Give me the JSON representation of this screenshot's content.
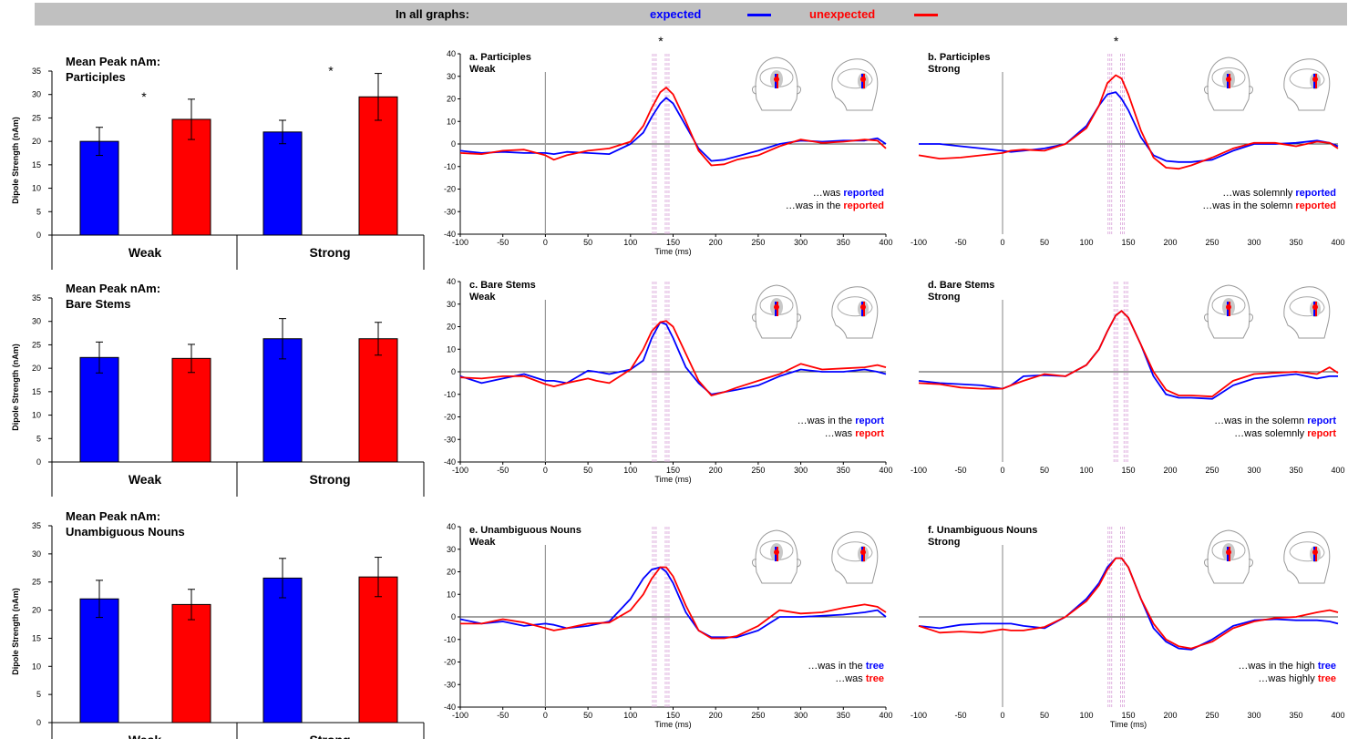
{
  "legend": {
    "label": "In all graphs:",
    "expected_label": "expected",
    "unexpected_label": "unexpected"
  },
  "colors": {
    "expected": "#0000ff",
    "unexpected": "#ff0000",
    "legend_bar": "#c0c0c0",
    "marker_lines": "#d8a0d8"
  },
  "chart_data": [
    {
      "id": "bar-participles",
      "type": "bar",
      "title": "Mean Peak nAm:\nParticiples",
      "ylabel": "Dipole Strength (nAm)",
      "ylim": [
        0,
        35
      ],
      "yticks": [
        0,
        5,
        10,
        15,
        20,
        25,
        30,
        35
      ],
      "categories": [
        "Weak",
        "Strong"
      ],
      "series": [
        {
          "name": "expected",
          "values": [
            20,
            22
          ],
          "errors": [
            3,
            2.5
          ]
        },
        {
          "name": "unexpected",
          "values": [
            24.7,
            29.5
          ],
          "errors": [
            4.3,
            5
          ]
        }
      ],
      "significance": [
        "*",
        "*"
      ]
    },
    {
      "id": "bar-bare-stems",
      "type": "bar",
      "title": "Mean Peak nAm:\nBare Stems",
      "ylabel": "Dipole Strength (nAm)",
      "ylim": [
        0,
        35
      ],
      "yticks": [
        0,
        5,
        10,
        15,
        20,
        25,
        30,
        35
      ],
      "categories": [
        "Weak",
        "Strong"
      ],
      "series": [
        {
          "name": "expected",
          "values": [
            22.3,
            26.3
          ],
          "errors": [
            3.3,
            4.3
          ]
        },
        {
          "name": "unexpected",
          "values": [
            22.1,
            26.3
          ],
          "errors": [
            3,
            3.5
          ]
        }
      ],
      "significance": [
        "",
        ""
      ]
    },
    {
      "id": "bar-unambiguous-nouns",
      "type": "bar",
      "title": "Mean Peak nAm:\nUnambiguous Nouns",
      "ylabel": "Dipole Strength (nAm)",
      "ylim": [
        0,
        35
      ],
      "yticks": [
        0,
        5,
        10,
        15,
        20,
        25,
        30,
        35
      ],
      "categories": [
        "Weak",
        "Strong"
      ],
      "series": [
        {
          "name": "expected",
          "values": [
            22,
            25.7
          ],
          "errors": [
            3.3,
            3.5
          ]
        },
        {
          "name": "unexpected",
          "values": [
            21,
            25.9
          ],
          "errors": [
            2.7,
            3.5
          ]
        }
      ],
      "significance": [
        "",
        ""
      ]
    },
    {
      "id": "line-a",
      "type": "line",
      "title": "a. Participles\n   Weak",
      "xlabel": "Time (ms)",
      "xlim": [
        -100,
        400
      ],
      "ylim": [
        -40,
        40
      ],
      "xticks": [
        -100,
        -50,
        0,
        50,
        100,
        150,
        200,
        250,
        300,
        350,
        400
      ],
      "yticks": [
        -40,
        -30,
        -20,
        -10,
        0,
        10,
        20,
        30,
        40
      ],
      "marker_star": "*",
      "x": [
        -100,
        -75,
        -50,
        -25,
        0,
        10,
        25,
        50,
        75,
        100,
        115,
        125,
        135,
        142,
        150,
        165,
        180,
        195,
        210,
        225,
        250,
        275,
        300,
        325,
        350,
        375,
        390,
        400
      ],
      "series": [
        {
          "name": "expected",
          "values": [
            -3,
            -4,
            -3.5,
            -4,
            -4,
            -4.5,
            -3.5,
            -4,
            -4.5,
            0,
            5,
            12,
            18,
            20.5,
            18,
            8,
            -2,
            -7.5,
            -7,
            -5.5,
            -3,
            0,
            1.5,
            1,
            1.5,
            1.5,
            2.5,
            0
          ]
        },
        {
          "name": "unexpected",
          "values": [
            -4,
            -4.5,
            -3,
            -2.5,
            -5,
            -7,
            -5,
            -3,
            -2,
            1,
            8,
            16,
            23,
            25,
            22,
            10,
            -3,
            -9.5,
            -9,
            -7,
            -5,
            -1,
            2,
            0.5,
            1,
            2,
            1.5,
            -2
          ]
        }
      ],
      "markers": [
        128,
        143
      ],
      "annotations": [
        {
          "prefix": "…was ",
          "word": "reported",
          "color": "expected"
        },
        {
          "prefix": "…was in the ",
          "word": "reported",
          "color": "unexpected"
        }
      ]
    },
    {
      "id": "line-b",
      "type": "line",
      "title": "b. Participles\n   Strong",
      "xlabel": "",
      "xlim": [
        -100,
        400
      ],
      "ylim": [
        -40,
        40
      ],
      "xticks": [
        -100,
        -50,
        0,
        50,
        100,
        150,
        200,
        250,
        300,
        350,
        400
      ],
      "yticks": [],
      "marker_star": "*",
      "x": [
        -100,
        -75,
        -50,
        -25,
        0,
        10,
        25,
        50,
        75,
        100,
        115,
        125,
        135,
        142,
        150,
        165,
        180,
        195,
        210,
        225,
        250,
        275,
        300,
        325,
        350,
        375,
        390,
        400
      ],
      "series": [
        {
          "name": "expected",
          "values": [
            0,
            0,
            -1,
            -2,
            -3,
            -3.5,
            -3,
            -2,
            0,
            8,
            17,
            22,
            23,
            20,
            15,
            3,
            -5,
            -7.5,
            -8,
            -8,
            -7,
            -3,
            0,
            0,
            0.5,
            1.5,
            0.5,
            -1
          ]
        },
        {
          "name": "unexpected",
          "values": [
            -5,
            -6.5,
            -6,
            -5,
            -4,
            -3,
            -2.5,
            -3,
            0,
            7,
            17,
            27,
            30.5,
            29,
            22,
            6,
            -6,
            -10.5,
            -11,
            -9.5,
            -6,
            -2,
            0.5,
            0.5,
            -1,
            1,
            0.5,
            -2
          ]
        }
      ],
      "markers": [
        128,
        143
      ],
      "annotations": [
        {
          "prefix": "…was solemnly ",
          "word": "reported",
          "color": "expected"
        },
        {
          "prefix": "…was in the solemn ",
          "word": "reported",
          "color": "unexpected"
        }
      ]
    },
    {
      "id": "line-c",
      "type": "line",
      "title": "c. Bare Stems\n   Weak",
      "xlabel": "Time (ms)",
      "xlim": [
        -100,
        400
      ],
      "ylim": [
        -40,
        40
      ],
      "xticks": [
        -100,
        -50,
        0,
        50,
        100,
        150,
        200,
        250,
        300,
        350,
        400
      ],
      "yticks": [
        -40,
        -30,
        -20,
        -10,
        0,
        10,
        20,
        30,
        40
      ],
      "marker_star": "",
      "x": [
        -100,
        -75,
        -50,
        -25,
        0,
        10,
        25,
        50,
        60,
        75,
        100,
        115,
        125,
        135,
        142,
        150,
        165,
        180,
        195,
        210,
        225,
        250,
        275,
        300,
        325,
        350,
        375,
        390,
        400
      ],
      "series": [
        {
          "name": "expected",
          "values": [
            -2,
            -5,
            -3,
            -1,
            -4,
            -4,
            -5,
            0.5,
            0,
            -1,
            1,
            5,
            15,
            22,
            21,
            15,
            2,
            -5,
            -10,
            -9,
            -8,
            -6,
            -2,
            1,
            0,
            0,
            1,
            0,
            -1
          ]
        },
        {
          "name": "unexpected",
          "values": [
            -2.5,
            -3,
            -2,
            -2,
            -5.5,
            -6.5,
            -5,
            -3,
            -4,
            -5,
            1,
            10,
            18,
            22,
            22.5,
            20,
            8,
            -4,
            -10.5,
            -9,
            -7,
            -4,
            -1,
            3.5,
            1,
            1.5,
            2,
            3,
            2
          ]
        }
      ],
      "markers": [
        128,
        143
      ],
      "annotations": [
        {
          "prefix": "…was in the ",
          "word": "report",
          "color": "expected"
        },
        {
          "prefix": "…was ",
          "word": "report",
          "color": "unexpected"
        }
      ]
    },
    {
      "id": "line-d",
      "type": "line",
      "title": "d. Bare Stems\n   Strong",
      "xlabel": "",
      "xlim": [
        -100,
        400
      ],
      "ylim": [
        -40,
        40
      ],
      "xticks": [
        -100,
        -50,
        0,
        50,
        100,
        150,
        200,
        250,
        300,
        350,
        400
      ],
      "yticks": [],
      "marker_star": "",
      "x": [
        -100,
        -75,
        -50,
        -25,
        0,
        10,
        25,
        50,
        75,
        100,
        115,
        125,
        135,
        142,
        150,
        165,
        180,
        195,
        210,
        225,
        250,
        275,
        300,
        325,
        350,
        375,
        390,
        400
      ],
      "series": [
        {
          "name": "expected",
          "values": [
            -4,
            -5,
            -5.5,
            -6,
            -7.5,
            -6,
            -2,
            -1.5,
            -2,
            3,
            10,
            18,
            25,
            27,
            24,
            12,
            -2,
            -10,
            -11.5,
            -11.5,
            -12,
            -6,
            -3,
            -2,
            -1,
            -3,
            -2,
            -2
          ]
        },
        {
          "name": "unexpected",
          "values": [
            -5,
            -5.5,
            -7,
            -7.5,
            -7.5,
            -6,
            -4,
            -1,
            -2,
            3,
            10,
            18,
            25,
            27,
            24,
            12,
            0,
            -8,
            -10.5,
            -10.5,
            -11,
            -4,
            -1,
            -0.5,
            0,
            -1,
            2,
            -0.5
          ]
        }
      ],
      "markers": [
        135,
        147
      ],
      "annotations": [
        {
          "prefix": "…was in the solemn ",
          "word": "report",
          "color": "expected"
        },
        {
          "prefix": "…was solemnly ",
          "word": "report",
          "color": "unexpected"
        }
      ]
    },
    {
      "id": "line-e",
      "type": "line",
      "title": "e. Unambiguous Nouns\n   Weak",
      "xlabel": "Time (ms)",
      "xlim": [
        -100,
        400
      ],
      "ylim": [
        -40,
        40
      ],
      "xticks": [
        -100,
        -50,
        0,
        50,
        100,
        150,
        200,
        250,
        300,
        350,
        400
      ],
      "yticks": [
        -40,
        -30,
        -20,
        -10,
        0,
        10,
        20,
        30,
        40
      ],
      "marker_star": "",
      "x": [
        -100,
        -75,
        -50,
        -25,
        0,
        10,
        25,
        50,
        75,
        100,
        115,
        125,
        135,
        142,
        150,
        165,
        180,
        195,
        210,
        225,
        250,
        275,
        300,
        325,
        350,
        375,
        390,
        400
      ],
      "series": [
        {
          "name": "expected",
          "values": [
            -1,
            -3,
            -2,
            -4,
            -3,
            -3.5,
            -5,
            -4,
            -2,
            8,
            17,
            21,
            22,
            20,
            15,
            2,
            -6,
            -9,
            -9,
            -9,
            -6,
            0,
            0,
            0.5,
            1,
            2,
            3,
            0
          ]
        },
        {
          "name": "unexpected",
          "values": [
            -3,
            -3,
            -1,
            -2.5,
            -5,
            -6,
            -5,
            -3,
            -2.5,
            3,
            10,
            17,
            22,
            22,
            18,
            5,
            -6,
            -9.5,
            -9.5,
            -8.5,
            -4,
            3,
            1.5,
            2,
            4,
            5.5,
            4.5,
            2
          ]
        }
      ],
      "markers": [
        128,
        143
      ],
      "annotations": [
        {
          "prefix": "…was in the ",
          "word": "tree",
          "color": "expected"
        },
        {
          "prefix": "…was ",
          "word": "tree",
          "color": "unexpected"
        }
      ]
    },
    {
      "id": "line-f",
      "type": "line",
      "title": "f. Unambiguous Nouns\n   Strong",
      "xlabel": "Time (ms)",
      "xlim": [
        -100,
        400
      ],
      "ylim": [
        -40,
        40
      ],
      "xticks": [
        -100,
        -50,
        0,
        50,
        100,
        150,
        200,
        250,
        300,
        350,
        400
      ],
      "yticks": [],
      "marker_star": "",
      "x": [
        -100,
        -75,
        -50,
        -25,
        0,
        10,
        25,
        50,
        75,
        100,
        115,
        125,
        135,
        142,
        150,
        165,
        180,
        195,
        210,
        225,
        250,
        275,
        300,
        325,
        350,
        375,
        390,
        400
      ],
      "series": [
        {
          "name": "expected",
          "values": [
            -4,
            -5,
            -3.5,
            -3,
            -3,
            -3,
            -4,
            -5,
            0,
            8,
            15,
            22,
            26,
            26,
            22,
            8,
            -5,
            -11,
            -14,
            -14.5,
            -10,
            -4,
            -1.5,
            -1,
            -1.5,
            -1.5,
            -2,
            -3
          ]
        },
        {
          "name": "unexpected",
          "values": [
            -4,
            -7,
            -6.5,
            -7,
            -5.5,
            -6,
            -6,
            -4.5,
            0,
            7,
            14,
            21,
            26,
            26,
            22,
            8,
            -3,
            -10,
            -13,
            -14,
            -11,
            -5,
            -2,
            -0.5,
            0,
            2,
            3,
            2
          ]
        }
      ],
      "markers": [
        128,
        143
      ],
      "annotations": [
        {
          "prefix": "…was in the high ",
          "word": "tree",
          "color": "expected"
        },
        {
          "prefix": "…was highly ",
          "word": "tree",
          "color": "unexpected"
        }
      ]
    }
  ]
}
